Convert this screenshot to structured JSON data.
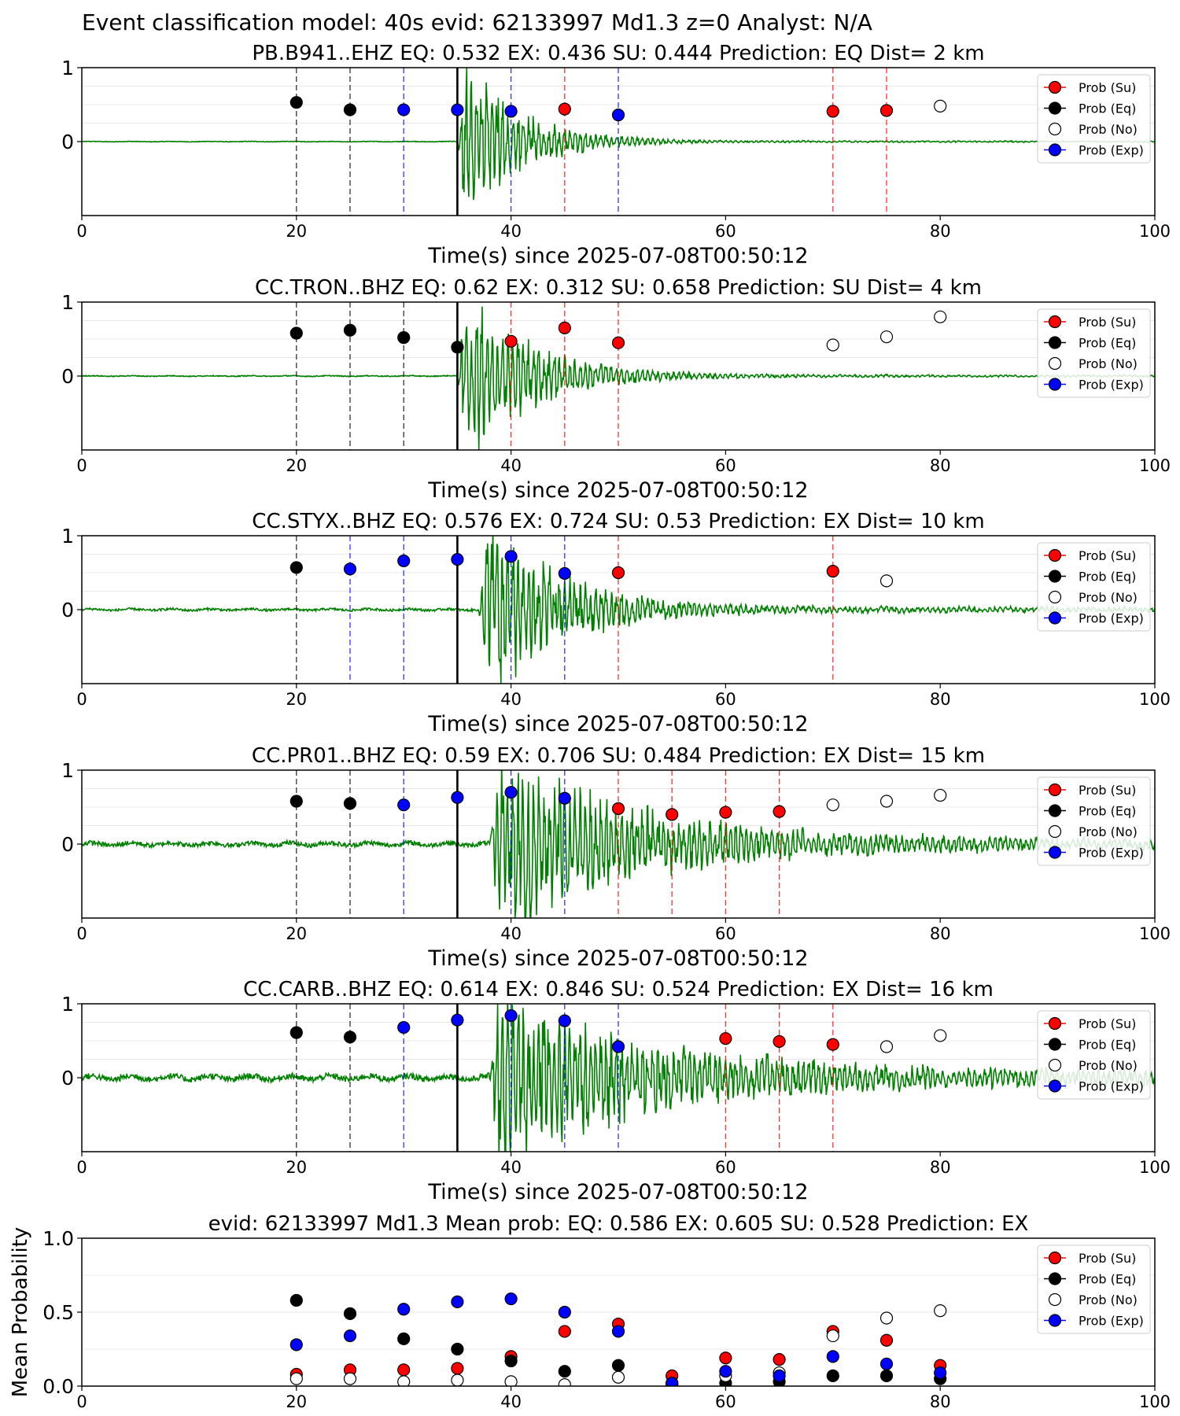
{
  "figure_title": "Event classification model: 40s evid: 62133997 Md1.3 z=0 Analyst: N/A",
  "colors": {
    "su": "#ff0000",
    "eq": "#000000",
    "no": "#ffffff",
    "exp": "#0000ff",
    "waveform": "#008000",
    "grid": "#e8e8e8",
    "pick": "#000000"
  },
  "legend_labels": [
    "Prob (Su)",
    "Prob (Eq)",
    "Prob (No)",
    "Prob (Exp)"
  ],
  "chart_data": [
    {
      "type": "scatter",
      "title": "PB.B941..EHZ   EQ: 0.532  EX: 0.436  SU: 0.444   Prediction: EQ    Dist= 2 km",
      "xlabel": "Time(s) since 2025-07-08T00:50:12",
      "ylabel": "",
      "xlim": [
        0,
        100
      ],
      "ylim": [
        -1,
        1
      ],
      "xticks": [
        "0",
        "20",
        "40",
        "60",
        "80",
        "100"
      ],
      "yticks": [
        "1",
        "0"
      ],
      "pick_time": 35,
      "window_lines": [
        {
          "x": 20,
          "class": "eq"
        },
        {
          "x": 25,
          "class": "eq"
        },
        {
          "x": 30,
          "class": "exp"
        },
        {
          "x": 40,
          "class": "exp"
        },
        {
          "x": 45,
          "class": "su"
        },
        {
          "x": 50,
          "class": "exp"
        },
        {
          "x": 70,
          "class": "su"
        },
        {
          "x": 75,
          "class": "su"
        }
      ],
      "points": [
        {
          "x": 20,
          "y": 0.53,
          "class": "eq"
        },
        {
          "x": 25,
          "y": 0.43,
          "class": "eq"
        },
        {
          "x": 30,
          "y": 0.43,
          "class": "exp"
        },
        {
          "x": 35,
          "y": 0.43,
          "class": "exp"
        },
        {
          "x": 40,
          "y": 0.41,
          "class": "exp"
        },
        {
          "x": 45,
          "y": 0.44,
          "class": "su"
        },
        {
          "x": 50,
          "y": 0.36,
          "class": "exp"
        },
        {
          "x": 70,
          "y": 0.41,
          "class": "su"
        },
        {
          "x": 75,
          "y": 0.42,
          "class": "su"
        },
        {
          "x": 80,
          "y": 0.48,
          "class": "no"
        }
      ],
      "waveform": {
        "onset": 35,
        "peak": 1.0,
        "end": 55,
        "noise": 0.004,
        "decay": 5
      }
    },
    {
      "type": "scatter",
      "title": "CC.TRON..BHZ   EQ: 0.62  EX: 0.312  SU: 0.658   Prediction: SU    Dist= 4 km",
      "xlabel": "Time(s) since 2025-07-08T00:50:12",
      "ylabel": "",
      "xlim": [
        0,
        100
      ],
      "ylim": [
        -1,
        1
      ],
      "xticks": [
        "0",
        "20",
        "40",
        "60",
        "80",
        "100"
      ],
      "yticks": [
        "1",
        "0"
      ],
      "pick_time": 35,
      "window_lines": [
        {
          "x": 20,
          "class": "eq"
        },
        {
          "x": 25,
          "class": "eq"
        },
        {
          "x": 30,
          "class": "eq"
        },
        {
          "x": 40,
          "class": "su"
        },
        {
          "x": 45,
          "class": "su"
        },
        {
          "x": 50,
          "class": "su"
        }
      ],
      "points": [
        {
          "x": 20,
          "y": 0.58,
          "class": "eq"
        },
        {
          "x": 25,
          "y": 0.62,
          "class": "eq"
        },
        {
          "x": 30,
          "y": 0.52,
          "class": "eq"
        },
        {
          "x": 35,
          "y": 0.39,
          "class": "eq"
        },
        {
          "x": 40,
          "y": 0.47,
          "class": "su"
        },
        {
          "x": 45,
          "y": 0.65,
          "class": "su"
        },
        {
          "x": 50,
          "y": 0.45,
          "class": "su"
        },
        {
          "x": 70,
          "y": 0.42,
          "class": "no"
        },
        {
          "x": 75,
          "y": 0.53,
          "class": "no"
        },
        {
          "x": 80,
          "y": 0.8,
          "class": "no"
        }
      ],
      "waveform": {
        "onset": 35,
        "peak": 1.0,
        "end": 60,
        "noise": 0.006,
        "decay": 6
      }
    },
    {
      "type": "scatter",
      "title": "CC.STYX..BHZ   EQ: 0.576  EX: 0.724  SU: 0.53   Prediction: EX    Dist= 10 km",
      "xlabel": "Time(s) since 2025-07-08T00:50:12",
      "ylabel": "",
      "xlim": [
        0,
        100
      ],
      "ylim": [
        -1,
        1
      ],
      "xticks": [
        "0",
        "20",
        "40",
        "60",
        "80",
        "100"
      ],
      "yticks": [
        "1",
        "0"
      ],
      "pick_time": 35,
      "window_lines": [
        {
          "x": 20,
          "class": "eq"
        },
        {
          "x": 25,
          "class": "exp"
        },
        {
          "x": 30,
          "class": "exp"
        },
        {
          "x": 40,
          "class": "exp"
        },
        {
          "x": 45,
          "class": "exp"
        },
        {
          "x": 50,
          "class": "su"
        },
        {
          "x": 70,
          "class": "su"
        }
      ],
      "points": [
        {
          "x": 20,
          "y": 0.57,
          "class": "eq"
        },
        {
          "x": 25,
          "y": 0.55,
          "class": "exp"
        },
        {
          "x": 30,
          "y": 0.66,
          "class": "exp"
        },
        {
          "x": 35,
          "y": 0.68,
          "class": "exp"
        },
        {
          "x": 40,
          "y": 0.72,
          "class": "exp"
        },
        {
          "x": 45,
          "y": 0.49,
          "class": "exp"
        },
        {
          "x": 50,
          "y": 0.5,
          "class": "su"
        },
        {
          "x": 70,
          "y": 0.52,
          "class": "su"
        },
        {
          "x": 75,
          "y": 0.39,
          "class": "no"
        }
      ],
      "waveform": {
        "onset": 37,
        "peak": 1.0,
        "end": 65,
        "noise": 0.015,
        "decay": 7
      }
    },
    {
      "type": "scatter",
      "title": "CC.PR01..BHZ   EQ: 0.59  EX: 0.706  SU: 0.484   Prediction: EX    Dist= 15 km",
      "xlabel": "Time(s) since 2025-07-08T00:50:12",
      "ylabel": "",
      "xlim": [
        0,
        100
      ],
      "ylim": [
        -1,
        1
      ],
      "xticks": [
        "0",
        "20",
        "40",
        "60",
        "80",
        "100"
      ],
      "yticks": [
        "1",
        "0"
      ],
      "pick_time": 35,
      "window_lines": [
        {
          "x": 20,
          "class": "eq"
        },
        {
          "x": 25,
          "class": "eq"
        },
        {
          "x": 30,
          "class": "exp"
        },
        {
          "x": 40,
          "class": "exp"
        },
        {
          "x": 45,
          "class": "exp"
        },
        {
          "x": 50,
          "class": "su"
        },
        {
          "x": 55,
          "class": "su"
        },
        {
          "x": 60,
          "class": "su"
        },
        {
          "x": 65,
          "class": "su"
        }
      ],
      "points": [
        {
          "x": 20,
          "y": 0.58,
          "class": "eq"
        },
        {
          "x": 25,
          "y": 0.55,
          "class": "eq"
        },
        {
          "x": 30,
          "y": 0.53,
          "class": "exp"
        },
        {
          "x": 35,
          "y": 0.63,
          "class": "exp"
        },
        {
          "x": 40,
          "y": 0.7,
          "class": "exp"
        },
        {
          "x": 45,
          "y": 0.62,
          "class": "exp"
        },
        {
          "x": 50,
          "y": 0.48,
          "class": "su"
        },
        {
          "x": 55,
          "y": 0.4,
          "class": "su"
        },
        {
          "x": 60,
          "y": 0.43,
          "class": "su"
        },
        {
          "x": 65,
          "y": 0.44,
          "class": "su"
        },
        {
          "x": 70,
          "y": 0.53,
          "class": "no"
        },
        {
          "x": 75,
          "y": 0.58,
          "class": "no"
        },
        {
          "x": 80,
          "y": 0.66,
          "class": "no"
        }
      ],
      "waveform": {
        "onset": 38,
        "peak": 1.0,
        "end": 100,
        "noise": 0.03,
        "decay": 12
      }
    },
    {
      "type": "scatter",
      "title": "CC.CARB..BHZ   EQ: 0.614  EX: 0.846  SU: 0.524   Prediction: EX    Dist= 16 km",
      "xlabel": "Time(s) since 2025-07-08T00:50:12",
      "ylabel": "",
      "xlim": [
        0,
        100
      ],
      "ylim": [
        -1,
        1
      ],
      "xticks": [
        "0",
        "20",
        "40",
        "60",
        "80",
        "100"
      ],
      "yticks": [
        "1",
        "0"
      ],
      "pick_time": 35,
      "window_lines": [
        {
          "x": 20,
          "class": "eq"
        },
        {
          "x": 25,
          "class": "eq"
        },
        {
          "x": 30,
          "class": "exp"
        },
        {
          "x": 40,
          "class": "exp"
        },
        {
          "x": 45,
          "class": "exp"
        },
        {
          "x": 50,
          "class": "exp"
        },
        {
          "x": 60,
          "class": "su"
        },
        {
          "x": 65,
          "class": "su"
        },
        {
          "x": 70,
          "class": "su"
        }
      ],
      "points": [
        {
          "x": 20,
          "y": 0.61,
          "class": "eq"
        },
        {
          "x": 25,
          "y": 0.55,
          "class": "eq"
        },
        {
          "x": 30,
          "y": 0.68,
          "class": "exp"
        },
        {
          "x": 35,
          "y": 0.78,
          "class": "exp"
        },
        {
          "x": 40,
          "y": 0.84,
          "class": "exp"
        },
        {
          "x": 45,
          "y": 0.77,
          "class": "exp"
        },
        {
          "x": 50,
          "y": 0.42,
          "class": "exp"
        },
        {
          "x": 60,
          "y": 0.53,
          "class": "su"
        },
        {
          "x": 65,
          "y": 0.49,
          "class": "su"
        },
        {
          "x": 70,
          "y": 0.45,
          "class": "su"
        },
        {
          "x": 75,
          "y": 0.42,
          "class": "no"
        },
        {
          "x": 80,
          "y": 0.57,
          "class": "no"
        }
      ],
      "waveform": {
        "onset": 38,
        "peak": 0.9,
        "end": 100,
        "noise": 0.04,
        "decay": 14
      }
    },
    {
      "type": "scatter",
      "title": "evid: 62133997  Md1.3   Mean prob:   EQ: 0.586  EX: 0.605  SU: 0.528   Prediction: EX",
      "xlabel": "",
      "ylabel": "Mean Probability",
      "xlim": [
        0,
        100
      ],
      "ylim": [
        0,
        1
      ],
      "xticks": [
        "0",
        "20",
        "40",
        "60",
        "80",
        "100"
      ],
      "yticks": [
        "1.0",
        "0.5",
        "0.0"
      ],
      "series": [
        {
          "name": "Prob (Su)",
          "class": "su",
          "x": [
            20,
            25,
            30,
            35,
            40,
            45,
            50,
            55,
            60,
            65,
            70,
            75,
            80
          ],
          "y": [
            0.08,
            0.11,
            0.11,
            0.12,
            0.2,
            0.37,
            0.42,
            0.07,
            0.19,
            0.18,
            0.37,
            0.31,
            0.14
          ]
        },
        {
          "name": "Prob (Eq)",
          "class": "eq",
          "x": [
            20,
            25,
            30,
            35,
            40,
            45,
            50,
            55,
            60,
            65,
            70,
            75,
            80
          ],
          "y": [
            0.58,
            0.49,
            0.32,
            0.25,
            0.17,
            0.1,
            0.14,
            0.01,
            0.02,
            0.03,
            0.07,
            0.07,
            0.05
          ]
        },
        {
          "name": "Prob (No)",
          "class": "no",
          "x": [
            20,
            25,
            30,
            35,
            40,
            45,
            50,
            55,
            60,
            65,
            70,
            75,
            80
          ],
          "y": [
            0.05,
            0.05,
            0.03,
            0.04,
            0.03,
            0.01,
            0.06,
            0.02,
            0.07,
            0.09,
            0.34,
            0.46,
            0.51
          ]
        },
        {
          "name": "Prob (Exp)",
          "class": "exp",
          "x": [
            20,
            25,
            30,
            35,
            40,
            45,
            50,
            55,
            60,
            65,
            70,
            75,
            80
          ],
          "y": [
            0.28,
            0.34,
            0.52,
            0.57,
            0.59,
            0.5,
            0.37,
            0.02,
            0.1,
            0.07,
            0.2,
            0.15,
            0.09
          ]
        }
      ]
    }
  ]
}
